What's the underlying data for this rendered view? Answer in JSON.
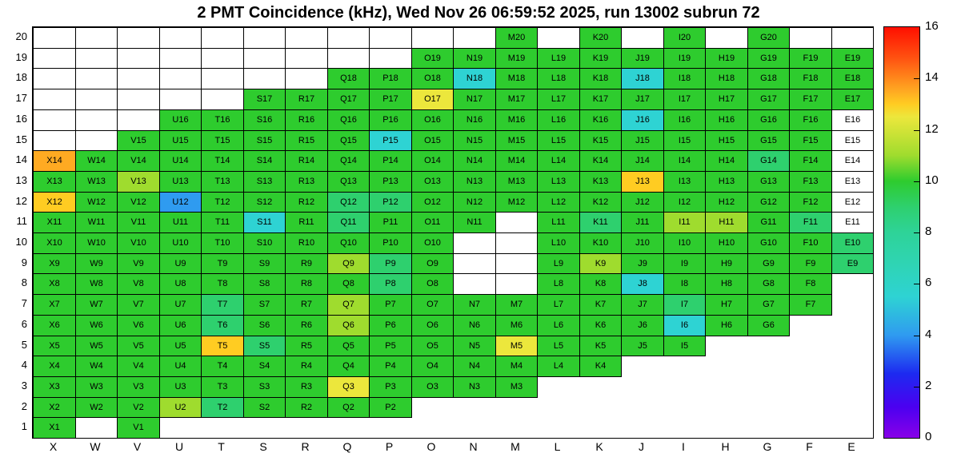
{
  "chart_data": {
    "type": "heatmap",
    "title": "2 PMT Coincidence (kHz), Wed Nov 26 06:59:52 2025, run 13002 subrun 72",
    "x_categories": [
      "X",
      "W",
      "V",
      "U",
      "T",
      "S",
      "R",
      "Q",
      "P",
      "O",
      "N",
      "M",
      "L",
      "K",
      "J",
      "I",
      "H",
      "G",
      "F",
      "E"
    ],
    "y_categories": [
      "1",
      "2",
      "3",
      "4",
      "5",
      "6",
      "7",
      "8",
      "9",
      "10",
      "11",
      "12",
      "13",
      "14",
      "15",
      "16",
      "17",
      "18",
      "19",
      "20"
    ],
    "colorbar": {
      "min": 0,
      "max": 16,
      "ticks": [
        "0",
        "2",
        "4",
        "6",
        "8",
        "10",
        "12",
        "14",
        "16"
      ]
    },
    "palette_stops": [
      [
        0,
        "#8800e8"
      ],
      [
        1.2,
        "#4b00f0"
      ],
      [
        2.5,
        "#1d2af0"
      ],
      [
        4,
        "#2f9bf0"
      ],
      [
        5.5,
        "#2ed3d3"
      ],
      [
        7,
        "#2fd4ae"
      ],
      [
        8,
        "#2ed398"
      ],
      [
        9,
        "#2ed06e"
      ],
      [
        10,
        "#2ecc2e"
      ],
      [
        11,
        "#9fdc2e"
      ],
      [
        12.5,
        "#ece73c"
      ],
      [
        13,
        "#ffcc22"
      ],
      [
        13.5,
        "#ffaa22"
      ],
      [
        14.8,
        "#ff5211"
      ],
      [
        16,
        "#ff0f00"
      ]
    ],
    "cells": [
      [
        "M20",
        10
      ],
      [
        "K20",
        10
      ],
      [
        "I20",
        10
      ],
      [
        "G20",
        10
      ],
      [
        "O19",
        10
      ],
      [
        "N19",
        10
      ],
      [
        "M19",
        10
      ],
      [
        "L19",
        10
      ],
      [
        "K19",
        10
      ],
      [
        "J19",
        10
      ],
      [
        "I19",
        10
      ],
      [
        "H19",
        10
      ],
      [
        "G19",
        10
      ],
      [
        "F19",
        10
      ],
      [
        "E19",
        10
      ],
      [
        "Q18",
        10
      ],
      [
        "P18",
        10
      ],
      [
        "O18",
        10
      ],
      [
        "N18",
        5.5
      ],
      [
        "M18",
        10
      ],
      [
        "L18",
        10
      ],
      [
        "K18",
        10
      ],
      [
        "J18",
        5.5
      ],
      [
        "I18",
        10
      ],
      [
        "H18",
        10
      ],
      [
        "G18",
        10
      ],
      [
        "F18",
        10
      ],
      [
        "E18",
        10
      ],
      [
        "S17",
        10
      ],
      [
        "R17",
        10
      ],
      [
        "Q17",
        10
      ],
      [
        "P17",
        10
      ],
      [
        "O17",
        12.5
      ],
      [
        "N17",
        10
      ],
      [
        "M17",
        10
      ],
      [
        "L17",
        10
      ],
      [
        "K17",
        10
      ],
      [
        "J17",
        10
      ],
      [
        "I17",
        10
      ],
      [
        "H17",
        10
      ],
      [
        "G17",
        10
      ],
      [
        "F17",
        10
      ],
      [
        "E17",
        10
      ],
      [
        "U16",
        10
      ],
      [
        "T16",
        10
      ],
      [
        "S16",
        10
      ],
      [
        "R16",
        10
      ],
      [
        "Q16",
        10
      ],
      [
        "P16",
        10
      ],
      [
        "O16",
        10
      ],
      [
        "N16",
        10
      ],
      [
        "M16",
        10
      ],
      [
        "L16",
        10
      ],
      [
        "K16",
        10
      ],
      [
        "J16",
        5.5
      ],
      [
        "I16",
        10
      ],
      [
        "H16",
        10
      ],
      [
        "G16",
        10
      ],
      [
        "F16",
        10
      ],
      [
        "V15",
        10
      ],
      [
        "U15",
        10
      ],
      [
        "T15",
        10
      ],
      [
        "S15",
        10
      ],
      [
        "R15",
        10
      ],
      [
        "Q15",
        10
      ],
      [
        "P15",
        5.5
      ],
      [
        "O15",
        10
      ],
      [
        "N15",
        10
      ],
      [
        "M15",
        10
      ],
      [
        "L15",
        10
      ],
      [
        "K15",
        10
      ],
      [
        "J15",
        10
      ],
      [
        "I15",
        10
      ],
      [
        "H15",
        10
      ],
      [
        "G15",
        10
      ],
      [
        "F15",
        10
      ],
      [
        "X14",
        13.5
      ],
      [
        "W14",
        10
      ],
      [
        "V14",
        10
      ],
      [
        "U14",
        10
      ],
      [
        "T14",
        10
      ],
      [
        "S14",
        10
      ],
      [
        "R14",
        10
      ],
      [
        "Q14",
        10
      ],
      [
        "P14",
        10
      ],
      [
        "O14",
        10
      ],
      [
        "N14",
        10
      ],
      [
        "M14",
        10
      ],
      [
        "L14",
        10
      ],
      [
        "K14",
        10
      ],
      [
        "J14",
        10
      ],
      [
        "I14",
        10
      ],
      [
        "H14",
        10
      ],
      [
        "G14",
        9
      ],
      [
        "F14",
        10
      ],
      [
        "X13",
        10
      ],
      [
        "W13",
        10
      ],
      [
        "V13",
        11
      ],
      [
        "U13",
        10
      ],
      [
        "T13",
        10
      ],
      [
        "S13",
        10
      ],
      [
        "R13",
        10
      ],
      [
        "Q13",
        10
      ],
      [
        "P13",
        10
      ],
      [
        "O13",
        10
      ],
      [
        "N13",
        10
      ],
      [
        "M13",
        10
      ],
      [
        "L13",
        10
      ],
      [
        "K13",
        10
      ],
      [
        "J13",
        13
      ],
      [
        "I13",
        10
      ],
      [
        "H13",
        10
      ],
      [
        "G13",
        10
      ],
      [
        "F13",
        10
      ],
      [
        "X12",
        13
      ],
      [
        "W12",
        10
      ],
      [
        "V12",
        10
      ],
      [
        "U12",
        4
      ],
      [
        "T12",
        10
      ],
      [
        "S12",
        10
      ],
      [
        "R12",
        10
      ],
      [
        "Q12",
        9
      ],
      [
        "P12",
        9
      ],
      [
        "O12",
        10
      ],
      [
        "N12",
        10
      ],
      [
        "M12",
        10
      ],
      [
        "L12",
        10
      ],
      [
        "K12",
        10
      ],
      [
        "J12",
        10
      ],
      [
        "I12",
        10
      ],
      [
        "H12",
        10
      ],
      [
        "G12",
        10
      ],
      [
        "F12",
        10
      ],
      [
        "X11",
        10
      ],
      [
        "W11",
        10
      ],
      [
        "V11",
        10
      ],
      [
        "U11",
        10
      ],
      [
        "T11",
        10
      ],
      [
        "S11",
        5.5
      ],
      [
        "R11",
        10
      ],
      [
        "Q11",
        9
      ],
      [
        "P11",
        10
      ],
      [
        "O11",
        10
      ],
      [
        "N11",
        10
      ],
      [
        "L11",
        10
      ],
      [
        "K11",
        9
      ],
      [
        "J11",
        10
      ],
      [
        "I11",
        11
      ],
      [
        "H11",
        11
      ],
      [
        "G11",
        10
      ],
      [
        "F11",
        9
      ],
      [
        "X10",
        10
      ],
      [
        "W10",
        10
      ],
      [
        "V10",
        10
      ],
      [
        "U10",
        10
      ],
      [
        "T10",
        10
      ],
      [
        "S10",
        10
      ],
      [
        "R10",
        10
      ],
      [
        "Q10",
        10
      ],
      [
        "P10",
        10
      ],
      [
        "O10",
        10
      ],
      [
        "L10",
        10
      ],
      [
        "K10",
        10
      ],
      [
        "J10",
        10
      ],
      [
        "I10",
        10
      ],
      [
        "H10",
        10
      ],
      [
        "G10",
        10
      ],
      [
        "F10",
        10
      ],
      [
        "E10",
        9
      ],
      [
        "X9",
        10
      ],
      [
        "W9",
        10
      ],
      [
        "V9",
        10
      ],
      [
        "U9",
        10
      ],
      [
        "T9",
        10
      ],
      [
        "S9",
        10
      ],
      [
        "R9",
        10
      ],
      [
        "Q9",
        11
      ],
      [
        "P9",
        9
      ],
      [
        "O9",
        10
      ],
      [
        "L9",
        10
      ],
      [
        "K9",
        11
      ],
      [
        "J9",
        10
      ],
      [
        "I9",
        10
      ],
      [
        "H9",
        10
      ],
      [
        "G9",
        10
      ],
      [
        "F9",
        10
      ],
      [
        "E9",
        9
      ],
      [
        "X8",
        10
      ],
      [
        "W8",
        10
      ],
      [
        "V8",
        10
      ],
      [
        "U8",
        10
      ],
      [
        "T8",
        10
      ],
      [
        "S8",
        10
      ],
      [
        "R8",
        10
      ],
      [
        "Q8",
        10
      ],
      [
        "P8",
        9
      ],
      [
        "O8",
        10
      ],
      [
        "L8",
        10
      ],
      [
        "K8",
        10
      ],
      [
        "J8",
        5.5
      ],
      [
        "I8",
        10
      ],
      [
        "H8",
        10
      ],
      [
        "G8",
        10
      ],
      [
        "F8",
        10
      ],
      [
        "X7",
        10
      ],
      [
        "W7",
        10
      ],
      [
        "V7",
        10
      ],
      [
        "U7",
        10
      ],
      [
        "T7",
        9
      ],
      [
        "S7",
        10
      ],
      [
        "R7",
        10
      ],
      [
        "Q7",
        11
      ],
      [
        "P7",
        10
      ],
      [
        "O7",
        10
      ],
      [
        "N7",
        10
      ],
      [
        "M7",
        10
      ],
      [
        "L7",
        10
      ],
      [
        "K7",
        10
      ],
      [
        "J7",
        10
      ],
      [
        "I7",
        9
      ],
      [
        "H7",
        10
      ],
      [
        "G7",
        10
      ],
      [
        "F7",
        10
      ],
      [
        "X6",
        10
      ],
      [
        "W6",
        10
      ],
      [
        "V6",
        10
      ],
      [
        "U6",
        10
      ],
      [
        "T6",
        9
      ],
      [
        "S6",
        10
      ],
      [
        "R6",
        10
      ],
      [
        "Q6",
        11
      ],
      [
        "P6",
        10
      ],
      [
        "O6",
        10
      ],
      [
        "N6",
        10
      ],
      [
        "M6",
        10
      ],
      [
        "L6",
        10
      ],
      [
        "K6",
        10
      ],
      [
        "J6",
        10
      ],
      [
        "I6",
        5.5
      ],
      [
        "H6",
        10
      ],
      [
        "G6",
        10
      ],
      [
        "X5",
        10
      ],
      [
        "W5",
        10
      ],
      [
        "V5",
        10
      ],
      [
        "U5",
        10
      ],
      [
        "T5",
        13
      ],
      [
        "S5",
        9
      ],
      [
        "R5",
        10
      ],
      [
        "Q5",
        10
      ],
      [
        "P5",
        10
      ],
      [
        "O5",
        10
      ],
      [
        "N5",
        10
      ],
      [
        "M5",
        12.5
      ],
      [
        "L5",
        10
      ],
      [
        "K5",
        10
      ],
      [
        "J5",
        10
      ],
      [
        "I5",
        10
      ],
      [
        "X4",
        10
      ],
      [
        "W4",
        10
      ],
      [
        "V4",
        10
      ],
      [
        "U4",
        10
      ],
      [
        "T4",
        10
      ],
      [
        "S4",
        10
      ],
      [
        "R4",
        10
      ],
      [
        "Q4",
        10
      ],
      [
        "P4",
        10
      ],
      [
        "O4",
        10
      ],
      [
        "N4",
        10
      ],
      [
        "M4",
        10
      ],
      [
        "L4",
        10
      ],
      [
        "K4",
        10
      ],
      [
        "X3",
        10
      ],
      [
        "W3",
        10
      ],
      [
        "V3",
        10
      ],
      [
        "U3",
        10
      ],
      [
        "T3",
        10
      ],
      [
        "S3",
        10
      ],
      [
        "R3",
        10
      ],
      [
        "Q3",
        12.5
      ],
      [
        "P3",
        10
      ],
      [
        "O3",
        10
      ],
      [
        "N3",
        10
      ],
      [
        "M3",
        10
      ],
      [
        "X2",
        10
      ],
      [
        "W2",
        10
      ],
      [
        "V2",
        10
      ],
      [
        "U2",
        11
      ],
      [
        "T2",
        9
      ],
      [
        "S2",
        10
      ],
      [
        "R2",
        10
      ],
      [
        "Q2",
        10
      ],
      [
        "P2",
        10
      ],
      [
        "X1",
        10
      ],
      [
        "V1",
        10
      ]
    ],
    "zero_label_cells": [
      "E16",
      "E15",
      "E14",
      "E13",
      "E12",
      "E11"
    ],
    "empty_bordered_cells": [
      "X20",
      "W20",
      "V20",
      "U20",
      "T20",
      "S20",
      "R20",
      "Q20",
      "P20",
      "O20",
      "N20",
      "L20",
      "J20",
      "H20",
      "F20",
      "E20",
      "X19",
      "W19",
      "V19",
      "U19",
      "T19",
      "S19",
      "R19",
      "Q19",
      "P19",
      "X18",
      "W18",
      "V18",
      "U18",
      "T18",
      "S18",
      "R18",
      "X17",
      "W17",
      "V17",
      "U17",
      "T17",
      "X16",
      "W16",
      "V16",
      "X15",
      "W15",
      "M11",
      "N10",
      "M10",
      "N9",
      "M9",
      "N8",
      "M8"
    ]
  }
}
